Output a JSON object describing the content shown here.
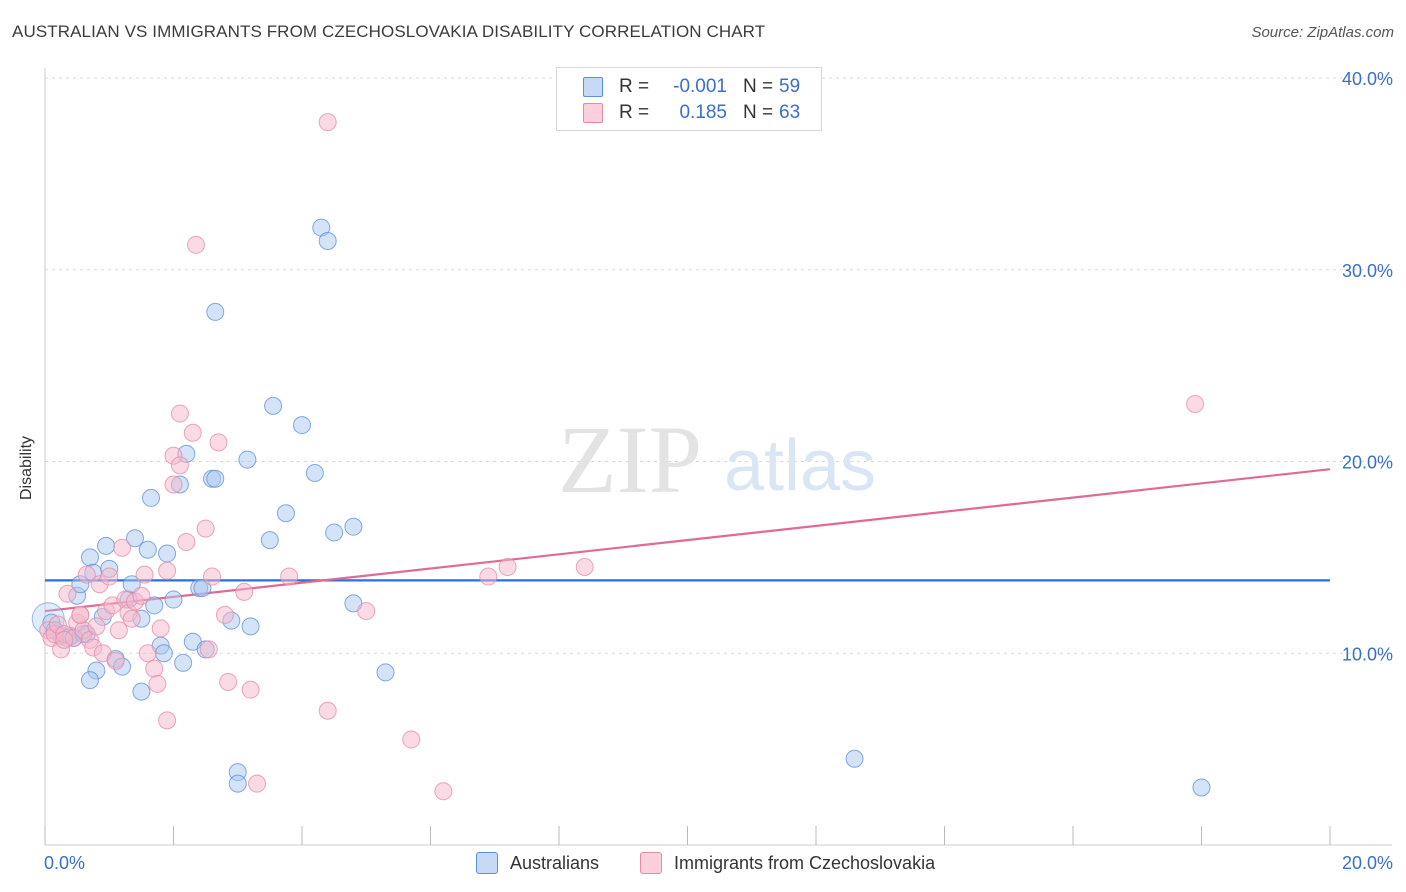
{
  "title": "AUSTRALIAN VS IMMIGRANTS FROM CZECHOSLOVAKIA DISABILITY CORRELATION CHART",
  "source": "Source: ZipAtlas.com",
  "legend": {
    "r_label": "R =",
    "n_label": "N =",
    "rows": [
      {
        "r": "-0.001",
        "n": "59",
        "color": "#a9c8f0"
      },
      {
        "r": "0.185",
        "n": "63",
        "color": "#f5b8cb"
      }
    ]
  },
  "watermark": {
    "zip": "ZIP",
    "atlas": "atlas"
  },
  "colors": {
    "blue_fill": "#a9c8f0",
    "blue_stroke": "#5b8fd8",
    "blue_line": "#2e6fd6",
    "pink_fill": "#f5b8cb",
    "pink_stroke": "#e58aa6",
    "pink_line": "#e06a95",
    "axis_text": "#3a6fc9",
    "grid": "#d9d9d9"
  },
  "chart_data": {
    "type": "scatter",
    "title": "AUSTRALIAN VS IMMIGRANTS FROM CZECHOSLOVAKIA DISABILITY CORRELATION CHART",
    "xlabel": "",
    "ylabel": "Disability",
    "xlim": [
      0,
      20
    ],
    "ylim": [
      0,
      40
    ],
    "x_tick_labels": [
      "0.0%",
      "20.0%"
    ],
    "y_ticks": [
      10,
      20,
      30,
      40
    ],
    "y_tick_labels": [
      "10.0%",
      "20.0%",
      "30.0%",
      "40.0%"
    ],
    "series": [
      {
        "name": "Australians",
        "color": "#a9c8f0",
        "r": -0.001,
        "n": 59,
        "trend": {
          "x": [
            0,
            20
          ],
          "y": [
            13.8,
            13.8
          ]
        },
        "points": [
          [
            0.1,
            11.6
          ],
          [
            0.15,
            11.2
          ],
          [
            0.25,
            10.9
          ],
          [
            0.35,
            10.8
          ],
          [
            0.4,
            10.9
          ],
          [
            0.45,
            10.8
          ],
          [
            0.5,
            13.0
          ],
          [
            0.55,
            13.6
          ],
          [
            0.6,
            11.0
          ],
          [
            0.65,
            11.0
          ],
          [
            0.7,
            15.0
          ],
          [
            0.75,
            14.2
          ],
          [
            0.8,
            9.1
          ],
          [
            0.9,
            11.9
          ],
          [
            0.95,
            15.6
          ],
          [
            1.0,
            14.4
          ],
          [
            1.1,
            9.7
          ],
          [
            1.2,
            9.3
          ],
          [
            1.3,
            12.8
          ],
          [
            1.35,
            13.6
          ],
          [
            1.4,
            16.0
          ],
          [
            1.5,
            11.8
          ],
          [
            1.6,
            15.4
          ],
          [
            1.65,
            18.1
          ],
          [
            1.7,
            12.5
          ],
          [
            1.8,
            10.4
          ],
          [
            1.85,
            10.0
          ],
          [
            1.9,
            15.2
          ],
          [
            2.0,
            12.8
          ],
          [
            2.1,
            18.8
          ],
          [
            2.15,
            9.5
          ],
          [
            2.2,
            20.4
          ],
          [
            2.3,
            10.6
          ],
          [
            2.4,
            13.4
          ],
          [
            2.45,
            13.4
          ],
          [
            2.5,
            10.2
          ],
          [
            2.6,
            19.1
          ],
          [
            2.65,
            19.1
          ],
          [
            2.65,
            27.8
          ],
          [
            2.9,
            11.7
          ],
          [
            3.0,
            3.8
          ],
          [
            3.0,
            3.2
          ],
          [
            3.15,
            20.1
          ],
          [
            3.2,
            11.4
          ],
          [
            3.5,
            15.9
          ],
          [
            3.55,
            22.9
          ],
          [
            3.75,
            17.3
          ],
          [
            4.0,
            21.9
          ],
          [
            4.2,
            19.4
          ],
          [
            4.3,
            32.2
          ],
          [
            4.4,
            31.5
          ],
          [
            4.5,
            16.3
          ],
          [
            4.8,
            12.6
          ],
          [
            4.8,
            16.6
          ],
          [
            5.3,
            9.0
          ],
          [
            0.7,
            8.6
          ],
          [
            1.5,
            8.0
          ],
          [
            12.6,
            4.5
          ],
          [
            18.0,
            3.0
          ]
        ]
      },
      {
        "name": "Immigrants from Czechoslovakia",
        "color": "#f5b8cb",
        "r": 0.185,
        "n": 63,
        "trend": {
          "x": [
            0,
            20
          ],
          "y": [
            12.2,
            19.6
          ]
        },
        "points": [
          [
            0.05,
            11.2
          ],
          [
            0.1,
            10.8
          ],
          [
            0.15,
            11.0
          ],
          [
            0.2,
            11.5
          ],
          [
            0.25,
            10.2
          ],
          [
            0.3,
            11.0
          ],
          [
            0.35,
            13.1
          ],
          [
            0.45,
            10.8
          ],
          [
            0.5,
            11.6
          ],
          [
            0.55,
            12.0
          ],
          [
            0.6,
            11.2
          ],
          [
            0.7,
            10.7
          ],
          [
            0.75,
            10.3
          ],
          [
            0.8,
            11.4
          ],
          [
            0.85,
            13.6
          ],
          [
            0.9,
            10.0
          ],
          [
            0.95,
            12.2
          ],
          [
            1.0,
            14.0
          ],
          [
            1.05,
            12.5
          ],
          [
            1.1,
            9.6
          ],
          [
            1.15,
            11.2
          ],
          [
            1.2,
            15.5
          ],
          [
            1.25,
            12.8
          ],
          [
            1.3,
            12.1
          ],
          [
            1.35,
            11.8
          ],
          [
            1.4,
            12.7
          ],
          [
            1.5,
            13.0
          ],
          [
            1.6,
            10.0
          ],
          [
            1.7,
            9.2
          ],
          [
            1.75,
            8.4
          ],
          [
            1.8,
            11.3
          ],
          [
            1.9,
            14.3
          ],
          [
            2.0,
            18.8
          ],
          [
            2.0,
            20.3
          ],
          [
            2.1,
            19.8
          ],
          [
            2.1,
            22.5
          ],
          [
            2.2,
            15.8
          ],
          [
            2.3,
            21.5
          ],
          [
            2.35,
            31.3
          ],
          [
            2.5,
            16.5
          ],
          [
            2.55,
            10.2
          ],
          [
            2.6,
            14.0
          ],
          [
            2.7,
            21.0
          ],
          [
            2.8,
            12.0
          ],
          [
            2.85,
            8.5
          ],
          [
            3.1,
            13.2
          ],
          [
            3.2,
            8.1
          ],
          [
            3.3,
            3.2
          ],
          [
            3.8,
            14.0
          ],
          [
            4.4,
            7.0
          ],
          [
            4.4,
            37.7
          ],
          [
            5.0,
            12.2
          ],
          [
            5.7,
            5.5
          ],
          [
            6.2,
            2.8
          ],
          [
            6.9,
            14.0
          ],
          [
            7.2,
            14.5
          ],
          [
            8.4,
            14.5
          ],
          [
            17.9,
            23.0
          ],
          [
            1.9,
            6.5
          ],
          [
            1.55,
            14.1
          ],
          [
            0.55,
            12.0
          ],
          [
            0.65,
            14.1
          ],
          [
            0.3,
            10.7
          ]
        ]
      }
    ]
  }
}
